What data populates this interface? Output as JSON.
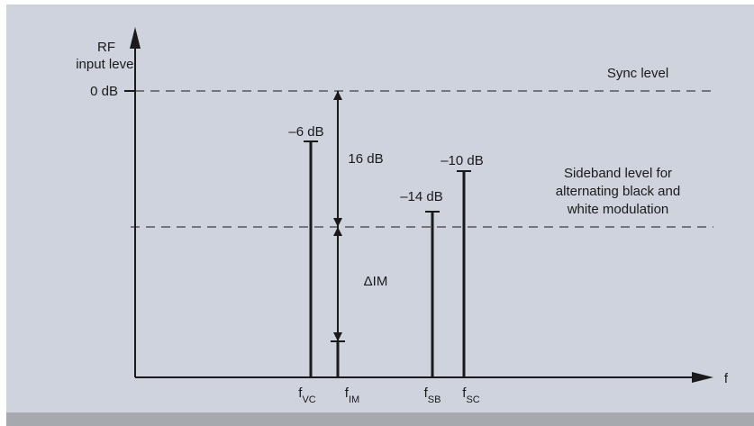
{
  "colors": {
    "background": "#ffffff",
    "panel": "#ced3de",
    "footer_bar": "#a6a9ad",
    "ink": "#1a1a1a"
  },
  "axes": {
    "y_label_line1": "RF",
    "y_label_line2": "input level",
    "x_label": "f",
    "zero_db_label": "0 dB"
  },
  "reference_lines": {
    "sync_level": "Sync level",
    "sideband_line1": "Sideband level for",
    "sideband_line2": "alternating black and",
    "sideband_line3": "white modulation"
  },
  "carriers": [
    {
      "id": "vc",
      "level": "–6 dB",
      "symbol": "f",
      "subscript": "VC"
    },
    {
      "id": "im",
      "level": "",
      "symbol": "f",
      "subscript": "IM"
    },
    {
      "id": "sb",
      "level": "–14 dB",
      "symbol": "f",
      "subscript": "SB"
    },
    {
      "id": "sc",
      "level": "–10 dB",
      "symbol": "f",
      "subscript": "SC"
    }
  ],
  "dimensions": {
    "upper_span": "16 dB",
    "lower_span": "ΔIM"
  }
}
